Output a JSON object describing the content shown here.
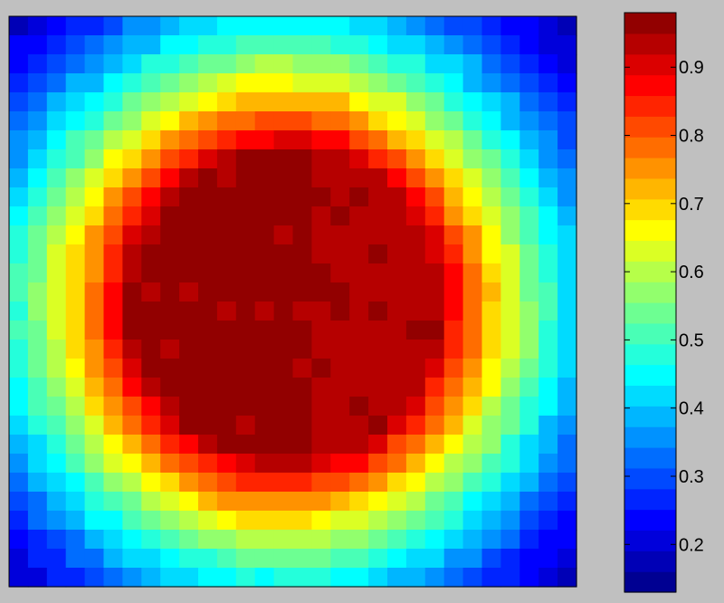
{
  "chart_data": {
    "type": "heatmap",
    "title": "",
    "xlabel": "",
    "ylabel": "",
    "grid": false,
    "n_rows": 30,
    "n_cols": 30,
    "value_model": {
      "kind": "radial bump estimated from pixels",
      "center_col": 14.0,
      "center_row": 14.7,
      "peak": 0.99,
      "edge": 0.16,
      "plateau_radius": 8.2,
      "falloff_exponent": 1.6
    },
    "plateau_values": {
      "dark_cells_value": 0.98,
      "red_cells_value": 0.93
    },
    "colorbar": {
      "colormap": "jet",
      "n_levels": 28,
      "range": [
        0.13,
        0.98
      ],
      "ticks": [
        {
          "label": "0.9",
          "value": 0.9
        },
        {
          "label": "0.8",
          "value": 0.8
        },
        {
          "label": "0.7",
          "value": 0.7
        },
        {
          "label": "0.6",
          "value": 0.6
        },
        {
          "label": "0.5",
          "value": 0.5
        },
        {
          "label": "0.4",
          "value": 0.4
        },
        {
          "label": "0.3",
          "value": 0.3
        },
        {
          "label": "0.2",
          "value": 0.2
        }
      ]
    }
  }
}
